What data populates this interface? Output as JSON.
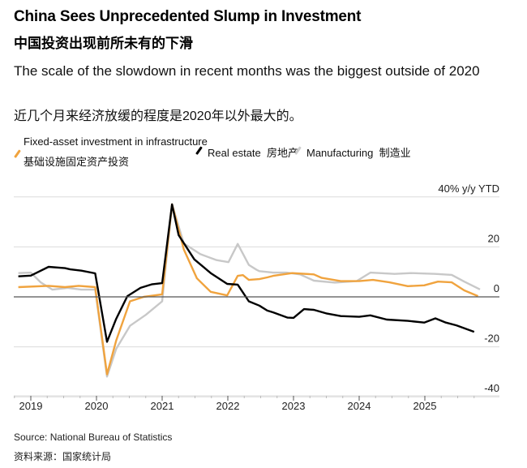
{
  "header": {
    "title": "China Sees Unprecedented Slump in Investment",
    "title_zh": "中国投资出现前所未有的下滑",
    "subtitle": "The scale of the slowdown in recent months was the biggest outside of 2020",
    "subtitle_zh": "近几个月来经济放缓的程度是2020年以外最大的。"
  },
  "footer": {
    "source": "Source: National Bureau of Statistics",
    "source_zh": "资料来源：国家统计局"
  },
  "chart_data": {
    "type": "line",
    "ylabel": "40% y/y YTD",
    "ylim": [
      -40,
      40
    ],
    "yticks": [
      40,
      20,
      0,
      -20,
      -40
    ],
    "ytick_labels": [
      "40% y/y YTD",
      "20",
      "0",
      "-20",
      "-40"
    ],
    "xticks": [
      2019,
      2020,
      2021,
      2022,
      2023,
      2024,
      2025
    ],
    "xtick_labels": [
      "2019",
      "2020",
      "2021",
      "2022",
      "2023",
      "2024",
      "2025"
    ],
    "grid": true,
    "legend": "top",
    "series": [
      {
        "name": "Fixed-asset investment in infrastructure",
        "name_zh": "基础设施固定资产投资",
        "color": "#f0a33e",
        "x": [
          2018.81,
          2019.27,
          2019.52,
          2019.73,
          2019.98,
          2020.16,
          2020.3,
          2020.51,
          2020.72,
          2021.0,
          2021.15,
          2021.33,
          2021.53,
          2021.74,
          2021.99,
          2022.15,
          2022.23,
          2022.32,
          2022.48,
          2022.6,
          2022.69,
          2022.98,
          2023.31,
          2023.43,
          2023.72,
          2024.0,
          2024.21,
          2024.46,
          2024.74,
          2024.99,
          2025.2,
          2025.41,
          2025.6,
          2025.81
        ],
        "y": [
          3.9,
          4.4,
          3.9,
          4.4,
          3.9,
          -31,
          -17.5,
          -1.8,
          0,
          1,
          37,
          19,
          7.4,
          2,
          0.6,
          8.4,
          8.7,
          6.8,
          7.1,
          7.8,
          8.4,
          9.5,
          9,
          7.6,
          6.3,
          6.3,
          6.8,
          5.8,
          4.3,
          4.6,
          6.1,
          5.8,
          2.6,
          0.3
        ]
      },
      {
        "name": "Real estate",
        "name_zh": "房地产",
        "color": "#000000",
        "x": [
          2018.81,
          2019.0,
          2019.27,
          2019.52,
          2019.6,
          2019.77,
          2019.98,
          2020.16,
          2020.3,
          2020.47,
          2020.67,
          2020.84,
          2021.0,
          2021.15,
          2021.25,
          2021.49,
          2021.74,
          2021.99,
          2022.15,
          2022.32,
          2022.48,
          2022.6,
          2022.69,
          2022.91,
          2023.0,
          2023.16,
          2023.31,
          2023.51,
          2023.72,
          2024.0,
          2024.17,
          2024.42,
          2024.74,
          2024.99,
          2025.16,
          2025.32,
          2025.48,
          2025.75
        ],
        "y": [
          8.2,
          8.5,
          12,
          11.5,
          11,
          10.5,
          9.4,
          -18,
          -8.8,
          0.3,
          3.6,
          5,
          5.5,
          37,
          24.7,
          15,
          9.5,
          5.2,
          4.9,
          -1.8,
          -3.5,
          -5.5,
          -6.2,
          -8.3,
          -8.4,
          -4.9,
          -5.2,
          -6.7,
          -7.7,
          -8,
          -7.4,
          -9.1,
          -9.6,
          -10.3,
          -8.6,
          -10.3,
          -11.4,
          -14
        ]
      },
      {
        "name": "Manufacturing",
        "name_zh": "制造业",
        "color": "#c8c8c8",
        "x": [
          2018.81,
          2019.0,
          2019.15,
          2019.33,
          2019.56,
          2019.77,
          2019.98,
          2020.16,
          2020.3,
          2020.51,
          2020.75,
          2021.0,
          2021.15,
          2021.33,
          2021.58,
          2021.83,
          2022.01,
          2022.15,
          2022.32,
          2022.44,
          2022.48,
          2022.69,
          2022.89,
          2023.1,
          2023.31,
          2023.63,
          2023.96,
          2024.17,
          2024.54,
          2024.79,
          2025.16,
          2025.41,
          2025.6,
          2025.84
        ],
        "y": [
          9.5,
          9.7,
          5.8,
          2.9,
          3.6,
          2.9,
          2.9,
          -31.9,
          -20.8,
          -11.6,
          -7.2,
          -1.8,
          37,
          21.4,
          17.1,
          14.7,
          13.9,
          21.2,
          12.8,
          10.8,
          10.3,
          9.7,
          9.7,
          9,
          6.5,
          5.7,
          6.3,
          9.7,
          9.2,
          9.5,
          9.2,
          8.8,
          6.1,
          3
        ]
      }
    ]
  }
}
